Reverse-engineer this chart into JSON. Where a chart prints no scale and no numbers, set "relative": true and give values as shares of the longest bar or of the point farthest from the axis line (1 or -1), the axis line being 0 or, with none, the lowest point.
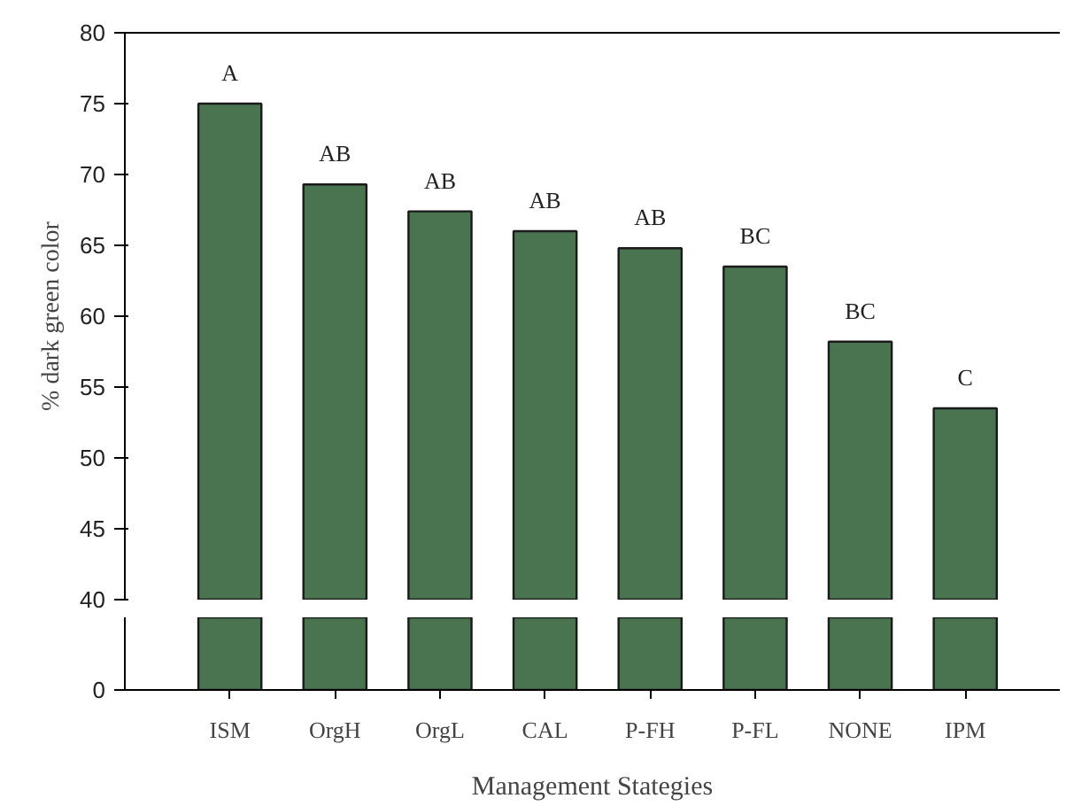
{
  "chart_data": [
    {
      "type": "bar",
      "ylabel": "% dark green color",
      "values": [
        75,
        69.3,
        67.4,
        66.0,
        64.8,
        63.5,
        58.2,
        53.5
      ],
      "color": "#4a7350",
      "value_labels": [
        "A",
        "AB",
        "AB",
        "AB",
        "AB",
        "BC",
        "BC",
        "C"
      ],
      "ylim": [
        40,
        80
      ],
      "yticks": [
        40,
        45,
        50,
        55,
        60,
        65,
        70,
        75,
        80
      ],
      "tick_labels": "y"
    },
    {
      "type": "bar",
      "xlabel": "Management Stategies",
      "categories": [
        "ISM",
        "OrgH",
        "OrgL",
        "CAL",
        "P-FH",
        "P-FL",
        "NONE",
        "IPM"
      ],
      "values": [
        1,
        1,
        1,
        1,
        1,
        1,
        1,
        1
      ],
      "color": "#4a7350",
      "relative": true,
      "annotations": [
        "0"
      ]
    }
  ]
}
